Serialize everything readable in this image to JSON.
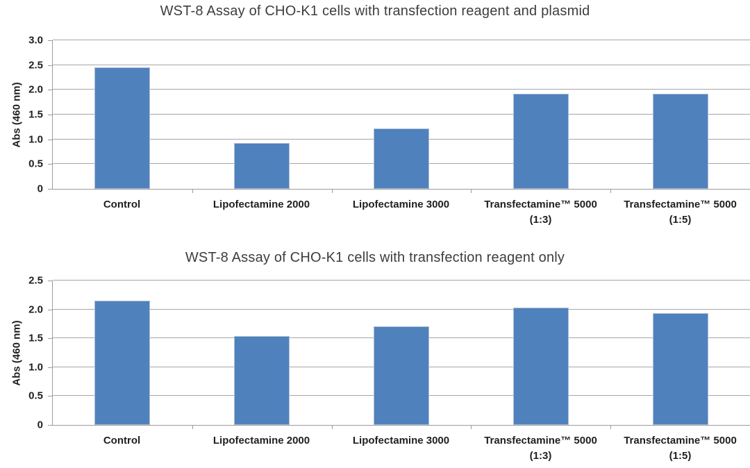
{
  "colors": {
    "background": "#ffffff",
    "bar_fill": "#4f81bd",
    "bar_border": "#aebfd8",
    "gridline": "#a6a6a6",
    "axis": "#9b9b9b",
    "title_text": "#3d3d3d",
    "label_text": "#1f1f1f"
  },
  "chart_data": [
    {
      "type": "bar",
      "title": "WST-8 Assay of CHO-K1 cells with transfection reagent and plasmid",
      "xlabel": "",
      "ylabel": "Abs (460 nm)",
      "categories": [
        "Control",
        "Lipofectamine 2000",
        "Lipofectamine 3000",
        "Transfectamine™ 5000\n(1:3)",
        "Transfectamine™ 5000\n(1:5)"
      ],
      "values": [
        2.45,
        0.93,
        1.22,
        1.92,
        1.92
      ],
      "ylim": [
        0,
        3.0
      ],
      "ystep": 0.5,
      "ytick_labels": [
        "0",
        "0.5",
        "1.0",
        "1.5",
        "2.0",
        "2.5",
        "3.0"
      ],
      "grid": true,
      "legend": "none"
    },
    {
      "type": "bar",
      "title": "WST-8 Assay of CHO-K1 cells with transfection reagent only",
      "xlabel": "",
      "ylabel": "Abs (460 nm)",
      "categories": [
        "Control",
        "Lipofectamine 2000",
        "Lipofectamine 3000",
        "Transfectamine™ 5000\n(1:3)",
        "Transfectamine™ 5000\n(1:5)"
      ],
      "values": [
        2.15,
        1.54,
        1.71,
        2.03,
        1.93
      ],
      "ylim": [
        0,
        2.5
      ],
      "ystep": 0.5,
      "ytick_labels": [
        "0",
        "0.5",
        "1.0",
        "1.5",
        "2.0",
        "2.5"
      ],
      "grid": true,
      "legend": "none"
    }
  ]
}
